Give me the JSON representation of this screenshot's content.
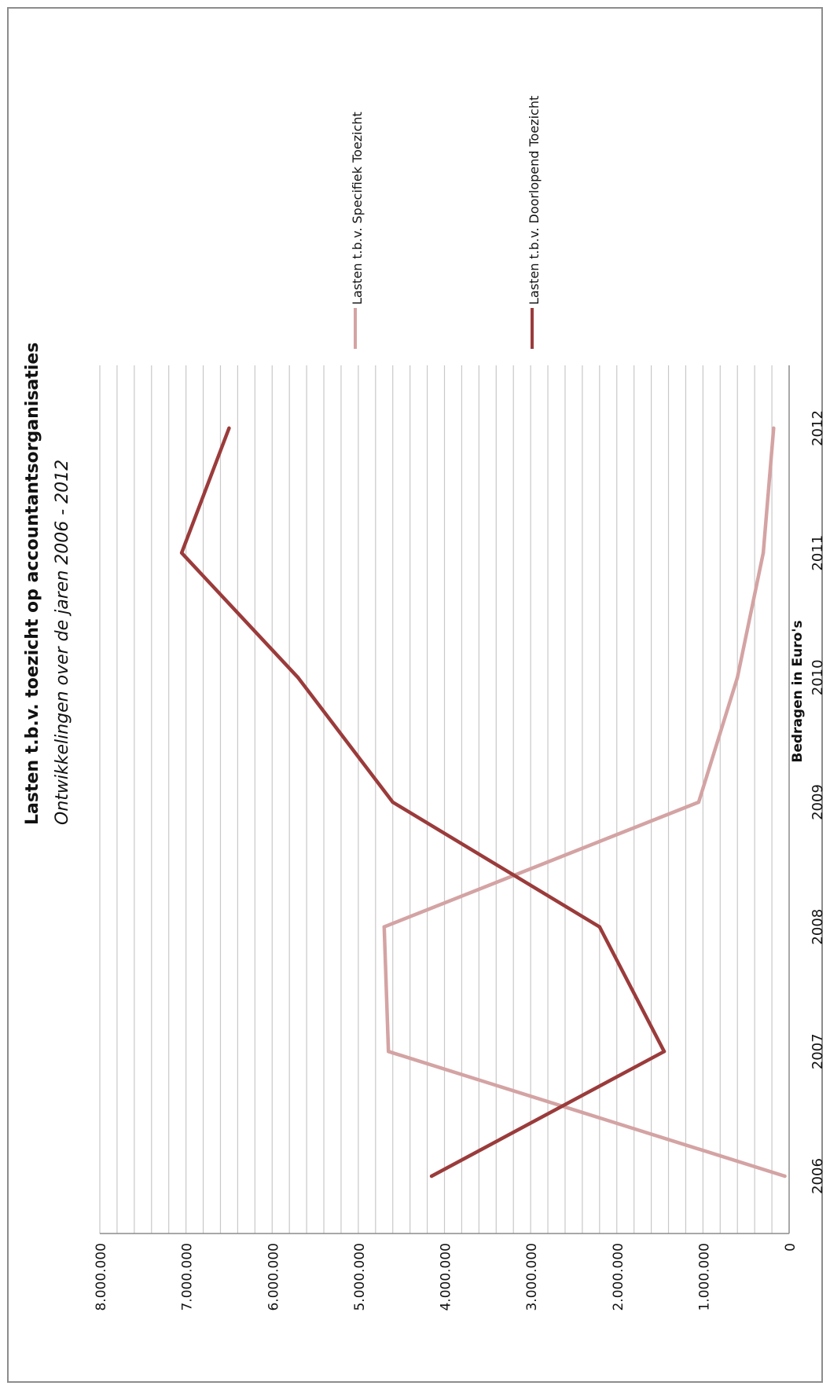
{
  "chart_data": {
    "type": "line",
    "title": "Lasten t.b.v. toezicht op accountantsorganisaties",
    "subtitle": "Ontwikkelingen over de jaren 2006 - 2012",
    "ylabel": "Bedragen in Euro's",
    "xlabel": "",
    "categories": [
      "2006",
      "2007",
      "2008",
      "2009",
      "2010",
      "2011",
      "2012"
    ],
    "ylim": [
      0,
      8000000
    ],
    "y_ticks": [
      0,
      1000000,
      2000000,
      3000000,
      4000000,
      5000000,
      6000000,
      7000000,
      8000000
    ],
    "y_tick_labels": [
      "0",
      "1.000.000",
      "2.000.000",
      "3.000.000",
      "4.000.000",
      "5.000.000",
      "6.000.000",
      "7.000.000",
      "8.000.000"
    ],
    "grid": true,
    "legend_position": "right",
    "rotated": "90deg-counterclockwise",
    "series": [
      {
        "name": "Lasten t.b.v. Specifiek Toezicht",
        "color": "#d4a3a3",
        "values": [
          50000,
          4650000,
          4700000,
          1050000,
          600000,
          300000,
          180000
        ]
      },
      {
        "name": "Lasten t.b.v. Doorlopend Toezicht",
        "color": "#9b3b3b",
        "values": [
          4150000,
          1450000,
          2200000,
          4600000,
          5700000,
          7050000,
          6500000
        ]
      }
    ]
  }
}
